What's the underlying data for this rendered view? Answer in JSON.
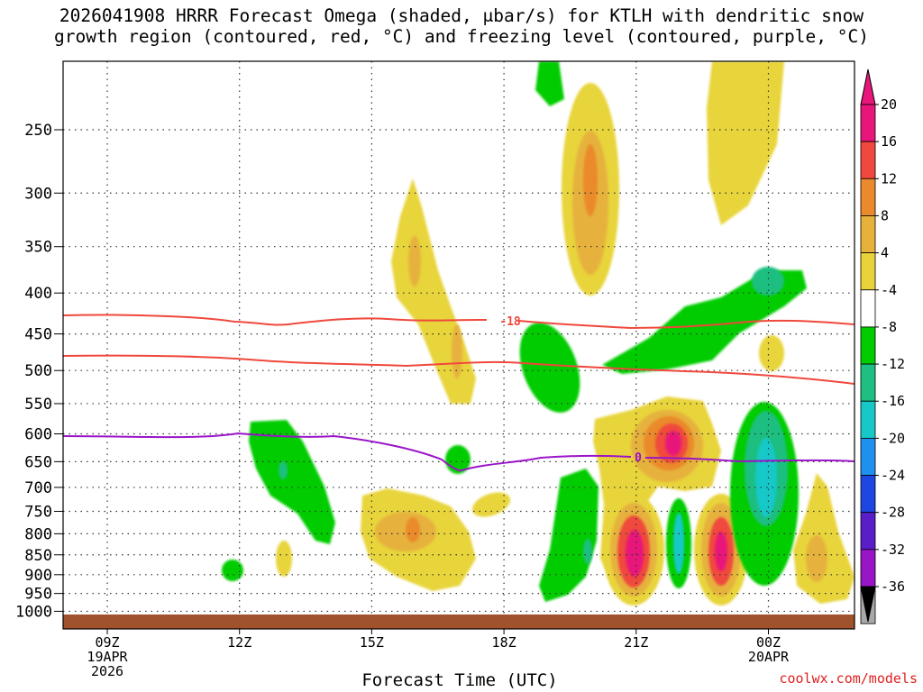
{
  "chart_data": {
    "type": "heatmap",
    "title_line1": "2026041908 HRRR Forecast Omega (shaded, μbar/s) for KTLH with dendritic snow",
    "title_line2": "growth region (contoured, red, °C) and freezing level (contoured, purple, °C)",
    "xlabel": "Forecast Time (UTC)",
    "credit": "coolwx.com/models",
    "x_ticks": [
      {
        "hour": 9,
        "lines": [
          "09Z",
          "19APR",
          "2026"
        ]
      },
      {
        "hour": 12,
        "lines": [
          "12Z"
        ]
      },
      {
        "hour": 15,
        "lines": [
          "15Z"
        ]
      },
      {
        "hour": 18,
        "lines": [
          "18Z"
        ]
      },
      {
        "hour": 21,
        "lines": [
          "21Z"
        ]
      },
      {
        "hour": 24,
        "lines": [
          "00Z",
          "20APR"
        ]
      }
    ],
    "x_range_hours": [
      8.2,
      26.0
    ],
    "y_ticks_hpa": [
      "250",
      "300",
      "350",
      "400",
      "450",
      "500",
      "550",
      "600",
      "650",
      "700",
      "750",
      "800",
      "850",
      "900",
      "950",
      "1000"
    ],
    "y_range_hpa": [
      200,
      1020
    ],
    "colorbar": {
      "ticks": [
        "20",
        "16",
        "12",
        "8",
        "4",
        "-4",
        "-8",
        "-12",
        "-16",
        "-20",
        "-24",
        "-28",
        "-32",
        "-36"
      ],
      "colors": [
        "#e8157a",
        "#f0483c",
        "#ea8a2c",
        "#e6b23c",
        "#e8d43a",
        "#ffffff",
        "#00cc00",
        "#1ebf80",
        "#18c8c8",
        "#1e90f0",
        "#1e46e0",
        "#5a1ec8",
        "#9a14c8",
        "#a8a8a8"
      ],
      "top_color": "#e8157a",
      "bottom_color": "#000000"
    },
    "contours": {
      "dgz_label": "-18",
      "freezing_label": "0",
      "dgz_color": "#f0483c",
      "freezing_color": "#9a14c8"
    },
    "ground_color": "#a0522d"
  }
}
